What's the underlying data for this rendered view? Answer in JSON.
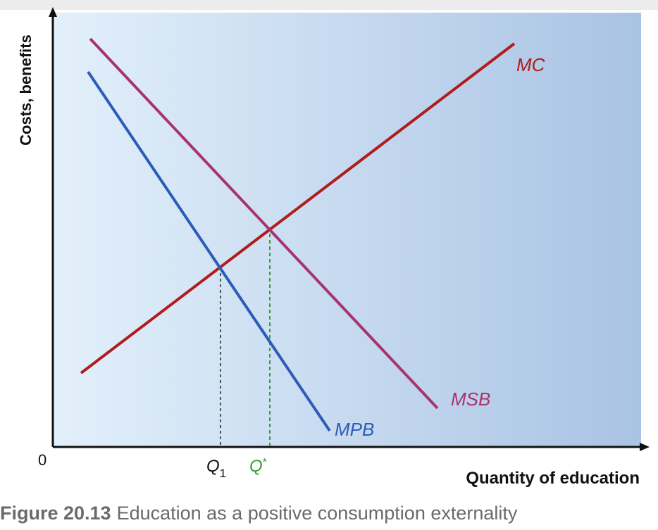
{
  "axes": {
    "y_label": "Costs, benefits",
    "x_label": "Quantity of education",
    "origin": "0"
  },
  "curves": [
    {
      "label": "MC"
    },
    {
      "label": "MSB"
    },
    {
      "label": "MPB"
    }
  ],
  "quantities": [
    {
      "letter": "Q",
      "mark": "1"
    },
    {
      "letter": "Q",
      "mark": "*"
    }
  ],
  "caption": {
    "number": "Figure 20.13",
    "text": "Education as a positive consumption externality"
  }
}
